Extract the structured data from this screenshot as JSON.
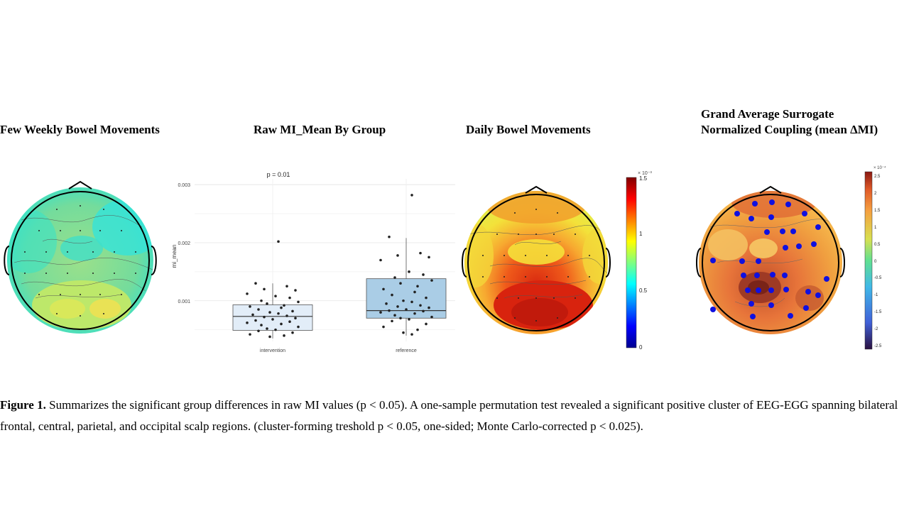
{
  "titles": {
    "panel1": "Few Weekly Bowel Movements",
    "panel2": "Raw MI_Mean By Group",
    "panel3": "Daily Bowel Movements",
    "panel4": "Grand Average Surrogate Normalized Coupling  (mean ΔMI)"
  },
  "boxplot": {
    "p_label": "p = 0.01",
    "ylabel": "mi_mean",
    "yticks": [
      "0.003",
      "0.002",
      "0.001"
    ],
    "groups": [
      "intervention",
      "reference"
    ]
  },
  "colorbar3": {
    "exponent": "× 10⁻³",
    "ticks": [
      "1.5",
      "1",
      "0.5",
      "0"
    ]
  },
  "colorbar4": {
    "exponent": "× 10⁻⁴",
    "ticks": [
      "2.5",
      "2",
      "1.5",
      "1",
      "0.5",
      "0",
      "-0.5",
      "-1",
      "-1.5",
      "-2",
      "-2.5"
    ]
  },
  "caption": {
    "label": "Figure 1.",
    "text": " Summarizes the significant group differences in raw MI values (p < 0.05). A one-sample permutation test revealed a significant positive cluster of EEG-EGG spanning bilateral frontal, central, parietal, and occipital scalp regions. (cluster-forming treshold p < 0.05, one-sided; Monte Carlo-corrected p < 0.025)."
  },
  "chart_data": {
    "type": "box",
    "title": "Raw MI_Mean By Group",
    "xlabel": "",
    "ylabel": "mi_mean",
    "ylim": [
      0.0003,
      0.0031
    ],
    "categories": [
      "intervention",
      "reference"
    ],
    "p_value_label": "p = 0.01",
    "boxes": [
      {
        "category": "intervention",
        "q1": 0.00049,
        "median": 0.00073,
        "q3": 0.00093,
        "whisker_low": 0.00035,
        "whisker_high": 0.0013
      },
      {
        "category": "reference",
        "q1": 0.0007,
        "median": 0.00083,
        "q3": 0.00138,
        "whisker_low": 0.0004,
        "whisker_high": 0.00208
      }
    ],
    "points": {
      "intervention": [
        0.00202,
        0.0013,
        0.00125,
        0.0012,
        0.00118,
        0.00112,
        0.00108,
        0.00105,
        0.001,
        0.00098,
        0.00095,
        0.00092,
        0.0009,
        0.00088,
        0.00085,
        0.00082,
        0.0008,
        0.00078,
        0.00076,
        0.00074,
        0.00072,
        0.0007,
        0.00068,
        0.00066,
        0.00064,
        0.00062,
        0.0006,
        0.00058,
        0.00055,
        0.00052,
        0.0005,
        0.00048,
        0.00045,
        0.00042,
        0.0004,
        0.00038
      ],
      "reference": [
        0.00282,
        0.0021,
        0.00182,
        0.00178,
        0.00175,
        0.0017,
        0.0015,
        0.00145,
        0.0014,
        0.00135,
        0.0013,
        0.00125,
        0.0012,
        0.00115,
        0.0011,
        0.00105,
        0.001,
        0.00098,
        0.00095,
        0.00092,
        0.0009,
        0.00088,
        0.00085,
        0.00083,
        0.00082,
        0.0008,
        0.00078,
        0.00075,
        0.00072,
        0.0007,
        0.00068,
        0.00065,
        0.0006,
        0.00055,
        0.0005,
        0.00045,
        0.00042
      ]
    }
  }
}
